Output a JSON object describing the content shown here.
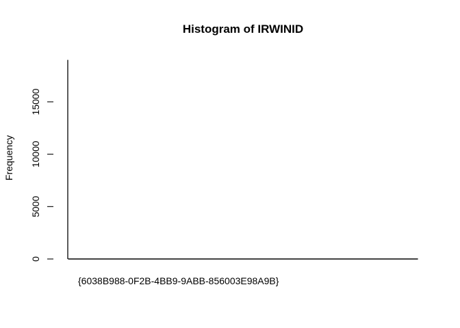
{
  "chart_data": {
    "type": "bar",
    "title": "Histogram of IRWINID",
    "xlabel": "",
    "ylabel": "Frequency",
    "categories": [
      "{6038B988-0F2B-4BB9-9ABB-856003E98A9B}"
    ],
    "values": [
      1
    ],
    "ylim": [
      0,
      19000
    ],
    "yticks": [
      0,
      5000,
      10000,
      15000
    ],
    "ytick_labels": [
      "0",
      "5000",
      "10000",
      "15000"
    ],
    "grid": false,
    "legend": "none",
    "colors": {
      "axis": "#000000",
      "bar_fill": "#ffffff",
      "bar_stroke": "#000000",
      "background": "#ffffff"
    }
  }
}
